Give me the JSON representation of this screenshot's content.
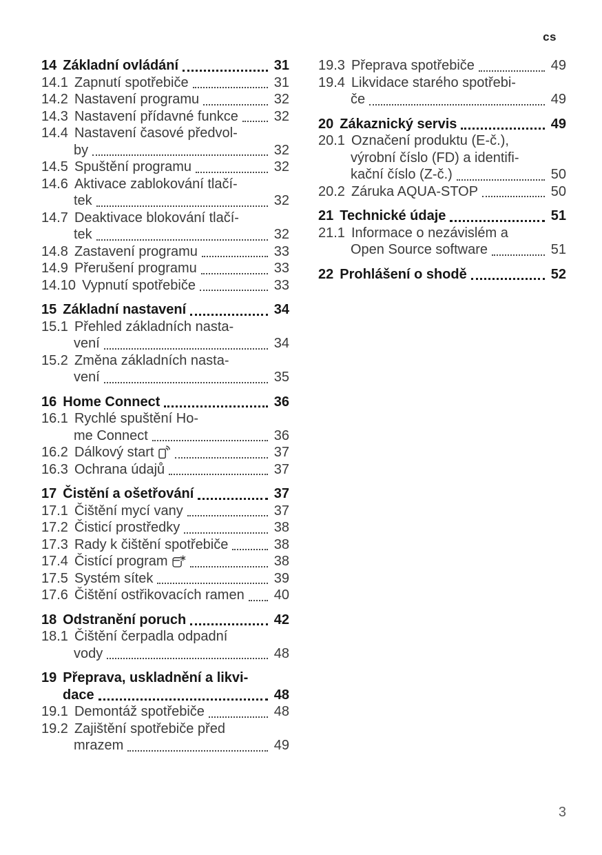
{
  "page": {
    "language_marker": "cs",
    "page_number": "3"
  },
  "toc": {
    "columns": [
      {
        "entries": [
          {
            "type": "chapter",
            "number": "14",
            "lines": [
              "Základní ovládání"
            ],
            "page": "31"
          },
          {
            "type": "section",
            "number": "14.1",
            "lines": [
              "Zapnutí spotřebiče"
            ],
            "page": "31"
          },
          {
            "type": "section",
            "number": "14.2",
            "lines": [
              "Nastavení programu"
            ],
            "page": "32"
          },
          {
            "type": "section",
            "number": "14.3",
            "lines": [
              "Nastavení přídavné funkce"
            ],
            "page": "32"
          },
          {
            "type": "section",
            "number": "14.4",
            "lines": [
              "Nastavení časové předvol-",
              "by"
            ],
            "page": "32"
          },
          {
            "type": "section",
            "number": "14.5",
            "lines": [
              "Spuštění programu"
            ],
            "page": "32"
          },
          {
            "type": "section",
            "number": "14.6",
            "lines": [
              "Aktivace zablokování tlačí-",
              "tek"
            ],
            "page": "32"
          },
          {
            "type": "section",
            "number": "14.7",
            "lines": [
              "Deaktivace blokování tlačí-",
              "tek"
            ],
            "page": "32"
          },
          {
            "type": "section",
            "number": "14.8",
            "lines": [
              "Zastavení programu"
            ],
            "page": "33"
          },
          {
            "type": "section",
            "number": "14.9",
            "lines": [
              "Přerušení programu"
            ],
            "page": "33"
          },
          {
            "type": "section",
            "number": "14.10",
            "lines": [
              "Vypnutí spotřebiče"
            ],
            "page": "33"
          },
          {
            "type": "chapter",
            "number": "15",
            "lines": [
              "Základní nastavení"
            ],
            "page": "34"
          },
          {
            "type": "section",
            "number": "15.1",
            "lines": [
              "Přehled základních nasta-",
              "vení"
            ],
            "page": "34"
          },
          {
            "type": "section",
            "number": "15.2",
            "lines": [
              "Změna základních nasta-",
              "vení"
            ],
            "page": "35"
          },
          {
            "type": "chapter",
            "number": "16",
            "lines": [
              "Home Connect"
            ],
            "page": "36"
          },
          {
            "type": "section",
            "number": "16.1",
            "lines": [
              "Rychlé spuštění Ho-",
              "me Connect"
            ],
            "page": "36"
          },
          {
            "type": "section",
            "number": "16.2",
            "lines": [
              "Dálkový start"
            ],
            "icon": "remote-start-icon",
            "page": "37"
          },
          {
            "type": "section",
            "number": "16.3",
            "lines": [
              "Ochrana údajů"
            ],
            "page": "37"
          },
          {
            "type": "chapter",
            "number": "17",
            "lines": [
              "Čistění a ošetřování"
            ],
            "page": "37"
          },
          {
            "type": "section",
            "number": "17.1",
            "lines": [
              "Čištění mycí vany"
            ],
            "page": "37"
          },
          {
            "type": "section",
            "number": "17.2",
            "lines": [
              "Čisticí prostředky"
            ],
            "page": "38"
          },
          {
            "type": "section",
            "number": "17.3",
            "lines": [
              "Rady k čištění spotřebiče"
            ],
            "page": "38"
          },
          {
            "type": "section",
            "number": "17.4",
            "lines": [
              "Čistící program"
            ],
            "icon": "cleaning-program-icon",
            "page": "38"
          },
          {
            "type": "section",
            "number": "17.5",
            "lines": [
              "Systém sítek"
            ],
            "page": "39"
          },
          {
            "type": "section",
            "number": "17.6",
            "lines": [
              "Čištění ostřikovacích ramen"
            ],
            "page": "40"
          },
          {
            "type": "chapter",
            "number": "18",
            "lines": [
              "Odstranění poruch"
            ],
            "page": "42"
          },
          {
            "type": "section",
            "number": "18.1",
            "lines": [
              "Čištění čerpadla odpadní",
              "vody"
            ],
            "page": "48"
          },
          {
            "type": "chapter",
            "number": "19",
            "lines": [
              "Přeprava, uskladnění a likvi-",
              "dace"
            ],
            "page": "48"
          },
          {
            "type": "section",
            "number": "19.1",
            "lines": [
              "Demontáž spotřebiče"
            ],
            "page": "48"
          },
          {
            "type": "section",
            "number": "19.2",
            "lines": [
              "Zajištění spotřebiče před",
              "mrazem"
            ],
            "page": "49"
          }
        ]
      },
      {
        "entries": [
          {
            "type": "section",
            "number": "19.3",
            "lines": [
              "Přeprava spotřebiče"
            ],
            "page": "49"
          },
          {
            "type": "section",
            "number": "19.4",
            "lines": [
              "Likvidace starého spotřebi-",
              "če"
            ],
            "page": "49"
          },
          {
            "type": "chapter",
            "number": "20",
            "lines": [
              "Zákaznický servis"
            ],
            "page": "49"
          },
          {
            "type": "section",
            "number": "20.1",
            "lines": [
              "Označení produktu (E-č.),",
              "výrobní číslo (FD) a identifi-",
              "kační číslo (Z-č.)"
            ],
            "page": "50"
          },
          {
            "type": "section",
            "number": "20.2",
            "lines": [
              "Záruka AQUA-STOP"
            ],
            "page": "50"
          },
          {
            "type": "chapter",
            "number": "21",
            "lines": [
              "Technické údaje"
            ],
            "page": "51"
          },
          {
            "type": "section",
            "number": "21.1",
            "lines": [
              "Informace o nezávislém a",
              "Open Source software"
            ],
            "page": "51"
          },
          {
            "type": "chapter",
            "number": "22",
            "lines": [
              "Prohlášení o shodě"
            ],
            "page": "52"
          }
        ]
      }
    ]
  }
}
